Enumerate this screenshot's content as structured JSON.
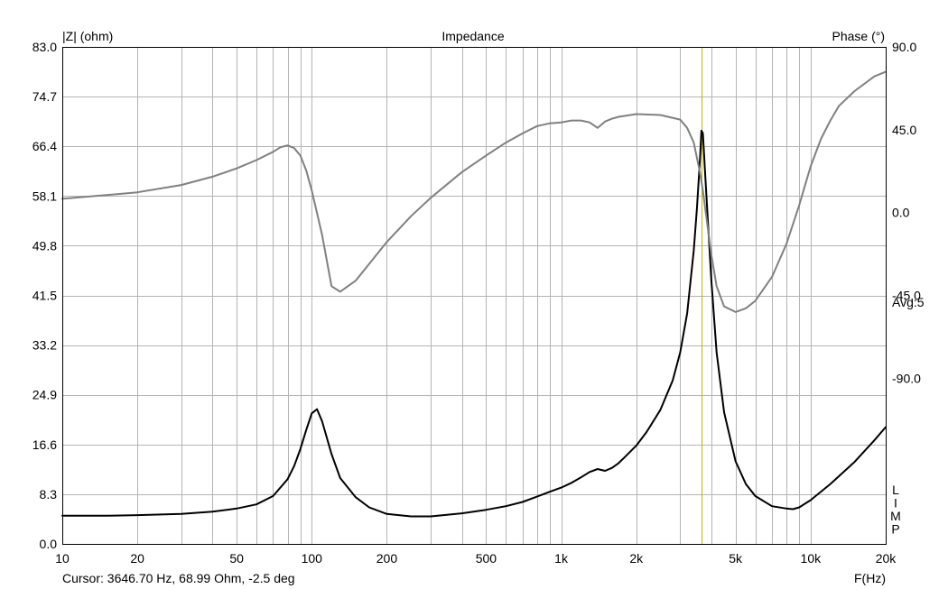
{
  "chart_data": {
    "type": "line",
    "title": "Impedance",
    "ylabel_left": "|Z| (ohm)",
    "ylabel_right": "Phase (°)",
    "xlabel": "F(Hz)",
    "x_scale": "log",
    "xlim": [
      10,
      20000
    ],
    "ylim_left": [
      0.0,
      83.0
    ],
    "ylim_right": [
      -180.0,
      90.0
    ],
    "grid": true,
    "x_tick_labels": [
      {
        "value": 10,
        "label": "10"
      },
      {
        "value": 20,
        "label": "20"
      },
      {
        "value": 50,
        "label": "50"
      },
      {
        "value": 100,
        "label": "100"
      },
      {
        "value": 200,
        "label": "200"
      },
      {
        "value": 500,
        "label": "500"
      },
      {
        "value": 1000,
        "label": "1k"
      },
      {
        "value": 2000,
        "label": "2k"
      },
      {
        "value": 5000,
        "label": "5k"
      },
      {
        "value": 10000,
        "label": "10k"
      },
      {
        "value": 20000,
        "label": "20k"
      }
    ],
    "y_left_ticks": [
      "0.0",
      "8.3",
      "16.6",
      "24.9",
      "33.2",
      "41.5",
      "49.8",
      "58.1",
      "66.4",
      "74.7",
      "83.0"
    ],
    "y_right_ticks": [
      {
        "value": 90,
        "label": "90.0"
      },
      {
        "value": 45,
        "label": "45.0"
      },
      {
        "value": 0,
        "label": "0.0"
      },
      {
        "value": -45,
        "label": "-45.0"
      },
      {
        "value": -90,
        "label": "-90.0"
      }
    ],
    "annotation_avg": "Avg:5",
    "limp_letters": [
      "L",
      "I",
      "M",
      "P"
    ],
    "cursor_text": "Cursor: 3646.70 Hz, 68.99 Ohm, -2.5 deg",
    "cursor_freq": 3646.7,
    "colors": {
      "impedance": "#000000",
      "phase": "#808080",
      "cursor": "#c8b400",
      "grid": "#b4b4b4",
      "frame": "#000000"
    },
    "series": [
      {
        "name": "|Z|",
        "axis": "left",
        "x": [
          10,
          15,
          20,
          30,
          40,
          50,
          60,
          70,
          80,
          85,
          90,
          95,
          100,
          105,
          110,
          120,
          130,
          150,
          170,
          200,
          250,
          300,
          400,
          500,
          600,
          700,
          800,
          900,
          1000,
          1100,
          1200,
          1300,
          1400,
          1500,
          1600,
          1700,
          1800,
          2000,
          2200,
          2500,
          2800,
          3000,
          3200,
          3400,
          3500,
          3600,
          3650,
          3700,
          3800,
          4000,
          4200,
          4500,
          5000,
          5500,
          6000,
          7000,
          8000,
          8500,
          9000,
          10000,
          12000,
          15000,
          18000,
          20000
        ],
        "y": [
          4.7,
          4.7,
          4.8,
          5.0,
          5.4,
          5.9,
          6.6,
          8.0,
          10.8,
          13.0,
          15.8,
          19.0,
          21.8,
          22.5,
          20.5,
          15.0,
          11.0,
          7.8,
          6.1,
          5.0,
          4.6,
          4.6,
          5.1,
          5.7,
          6.3,
          7.0,
          7.9,
          8.7,
          9.4,
          10.2,
          11.1,
          12.0,
          12.5,
          12.2,
          12.7,
          13.5,
          14.5,
          16.4,
          18.7,
          22.4,
          27.3,
          32.0,
          38.5,
          49.0,
          56.0,
          64.0,
          69.0,
          68.6,
          60.0,
          44.0,
          32.0,
          22.0,
          13.8,
          10.0,
          8.0,
          6.3,
          5.9,
          5.8,
          6.1,
          7.3,
          10.0,
          13.7,
          17.3,
          19.5
        ]
      },
      {
        "name": "Phase",
        "axis": "right",
        "x": [
          10,
          15,
          20,
          30,
          40,
          50,
          60,
          70,
          75,
          80,
          85,
          90,
          95,
          100,
          110,
          120,
          130,
          150,
          200,
          250,
          300,
          400,
          500,
          600,
          700,
          800,
          900,
          1000,
          1100,
          1200,
          1300,
          1400,
          1500,
          1600,
          1700,
          2000,
          2500,
          3000,
          3200,
          3400,
          3600,
          3700,
          3800,
          4000,
          4200,
          4500,
          5000,
          5500,
          6000,
          7000,
          8000,
          9000,
          10000,
          11000,
          12000,
          13000,
          15000,
          18000,
          20000
        ],
        "y": [
          7.5,
          9.5,
          11.0,
          15.0,
          19.5,
          24.0,
          28.5,
          33.0,
          35.5,
          36.5,
          35.0,
          31.0,
          23.0,
          12.0,
          -12.0,
          -40.0,
          -43.0,
          -37.0,
          -16.0,
          -2.0,
          8.0,
          22.0,
          31.0,
          38.0,
          43.0,
          47.0,
          48.5,
          49.0,
          50.0,
          50.0,
          49.0,
          46.0,
          49.5,
          51.0,
          52.0,
          53.5,
          53.0,
          50.5,
          46.0,
          38.0,
          22.0,
          12.0,
          0.0,
          -23.0,
          -40.0,
          -51.0,
          -54.0,
          -52.0,
          -48.0,
          -35.0,
          -17.0,
          4.0,
          25.0,
          40.0,
          50.0,
          58.0,
          66.0,
          74.0,
          76.5
        ]
      }
    ]
  }
}
